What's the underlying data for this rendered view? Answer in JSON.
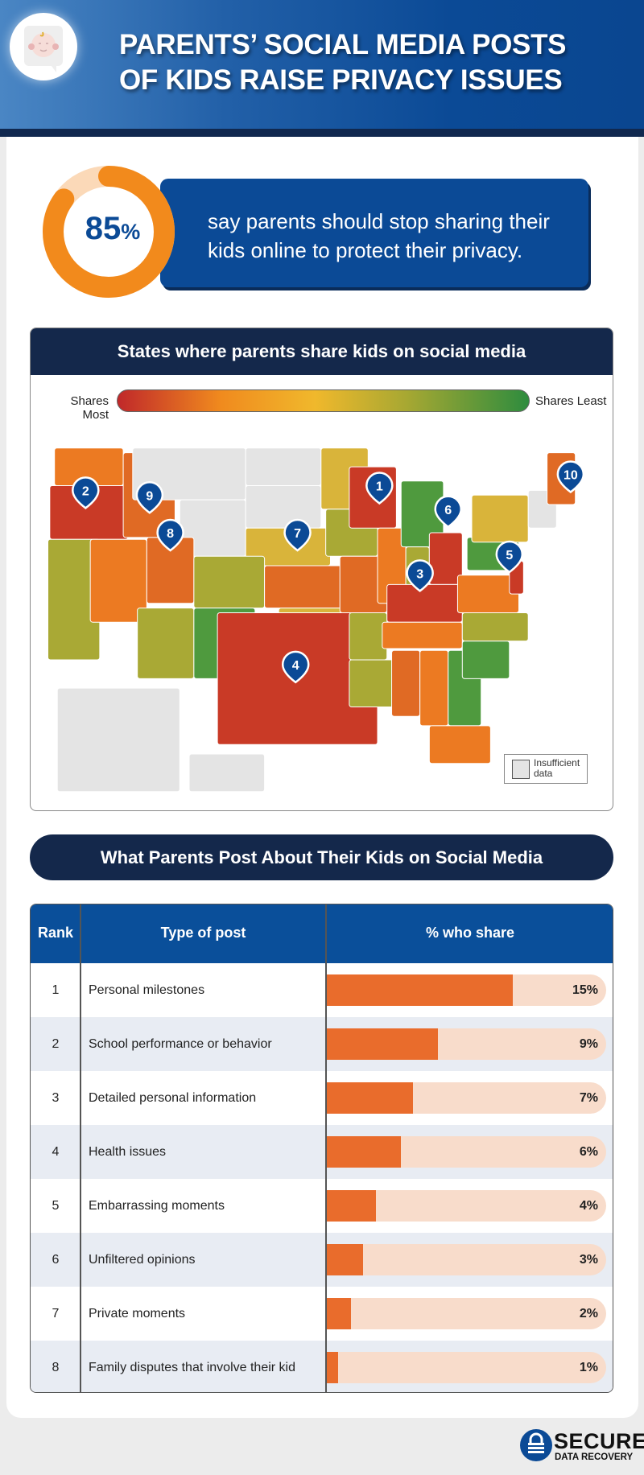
{
  "header": {
    "title_line1": "PARENTS’ SOCIAL MEDIA POSTS",
    "title_line2": "OF KIDS RAISE PRIVACY ISSUES",
    "icon": "baby-face-chat-bubble-icon"
  },
  "stat": {
    "value": "85",
    "unit": "%",
    "percent": 85,
    "text": "say parents should stop sharing their kids online to protect their privacy."
  },
  "map": {
    "title": "States where parents share kids on social media",
    "legend_left": "Shares Most",
    "legend_right": "Shares Least",
    "legend_colors": [
      "#c0282a",
      "#f08a1e",
      "#f0b82c",
      "#a8a832",
      "#2e8c3e"
    ],
    "insufficient_label": "Insufficient data",
    "insufficient_color": "#e4e4e4",
    "pins": [
      "1",
      "2",
      "3",
      "4",
      "5",
      "6",
      "7",
      "8",
      "9",
      "10"
    ]
  },
  "section2": {
    "title": "What Parents Post About Their Kids on Social Media"
  },
  "table": {
    "headers": {
      "rank": "Rank",
      "type": "Type of post",
      "share": "% who share"
    },
    "colors": {
      "bar": "#e96c2c",
      "track": "#f8dccb",
      "header": "#0a4f9a"
    }
  },
  "chart_data": {
    "type": "bar",
    "categories": [
      "Personal milestones",
      "School performance or behavior",
      "Detailed personal information",
      "Health issues",
      "Embarrassing moments",
      "Unfiltered opinions",
      "Private moments",
      "Family disputes that involve their kid"
    ],
    "ranks": [
      "1",
      "2",
      "3",
      "4",
      "5",
      "6",
      "7",
      "8"
    ],
    "values": [
      15,
      9,
      7,
      6,
      4,
      3,
      2,
      1
    ],
    "labels": [
      "15%",
      "9%",
      "7%",
      "6%",
      "4%",
      "3%",
      "2%",
      "1%"
    ],
    "xlabel": "% who share",
    "orientation": "horizontal"
  },
  "logo": {
    "line1": "SECURE",
    "line2": "DATA RECOVERY"
  }
}
